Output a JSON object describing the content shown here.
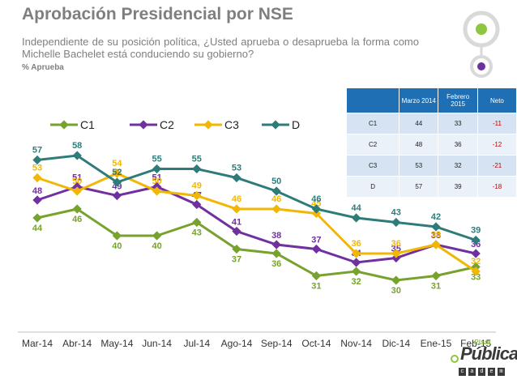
{
  "header": {
    "title": "Aprobación Presidencial por NSE",
    "subtitle": "Independiente de su posición política, ¿Usted aprueba o desaprueba la forma como Michelle Bachelet está conduciendo su gobierno?",
    "unit": "% Aprueba"
  },
  "chart_data": {
    "type": "line",
    "title": "Aprobación Presidencial por NSE",
    "ylabel": "% Aprueba",
    "ylim": [
      22,
      62
    ],
    "categories": [
      "Mar-14",
      "Abr-14",
      "May-14",
      "Jun-14",
      "Jul-14",
      "Ago-14",
      "Sep-14",
      "Oct-14",
      "Nov-14",
      "Dic-14",
      "Ene-15",
      "Feb-15"
    ],
    "series": [
      {
        "name": "C1",
        "color": "#77a22d",
        "values": [
          44,
          46,
          40,
          40,
          43,
          37,
          36,
          31,
          32,
          30,
          31,
          33
        ]
      },
      {
        "name": "C2",
        "color": "#7030a0",
        "values": [
          48,
          51,
          49,
          51,
          47,
          41,
          38,
          37,
          34,
          35,
          38,
          36
        ]
      },
      {
        "name": "C3",
        "color": "#f2b705",
        "values": [
          53,
          50,
          54,
          50,
          49,
          46,
          46,
          45,
          36,
          36,
          38,
          32
        ]
      },
      {
        "name": "D",
        "color": "#2e7c7a",
        "values": [
          57,
          58,
          52,
          55,
          55,
          53,
          50,
          46,
          44,
          43,
          42,
          39
        ]
      }
    ],
    "legend": "top-left"
  },
  "table": {
    "headers": [
      "",
      "Marzo 2014",
      "Febrero 2015",
      "Neto"
    ],
    "rows": [
      {
        "label": "C1",
        "marzo": "44",
        "febrero": "33",
        "neto": "-11"
      },
      {
        "label": "C2",
        "marzo": "48",
        "febrero": "36",
        "neto": "-12"
      },
      {
        "label": "C3",
        "marzo": "53",
        "febrero": "32",
        "neto": "-21"
      },
      {
        "label": "D",
        "marzo": "57",
        "febrero": "39",
        "neto": "-18"
      }
    ]
  },
  "logo": {
    "small": "Plaza",
    "main": "Pública",
    "strip": [
      "c",
      "a",
      "d",
      "e",
      "m"
    ]
  }
}
